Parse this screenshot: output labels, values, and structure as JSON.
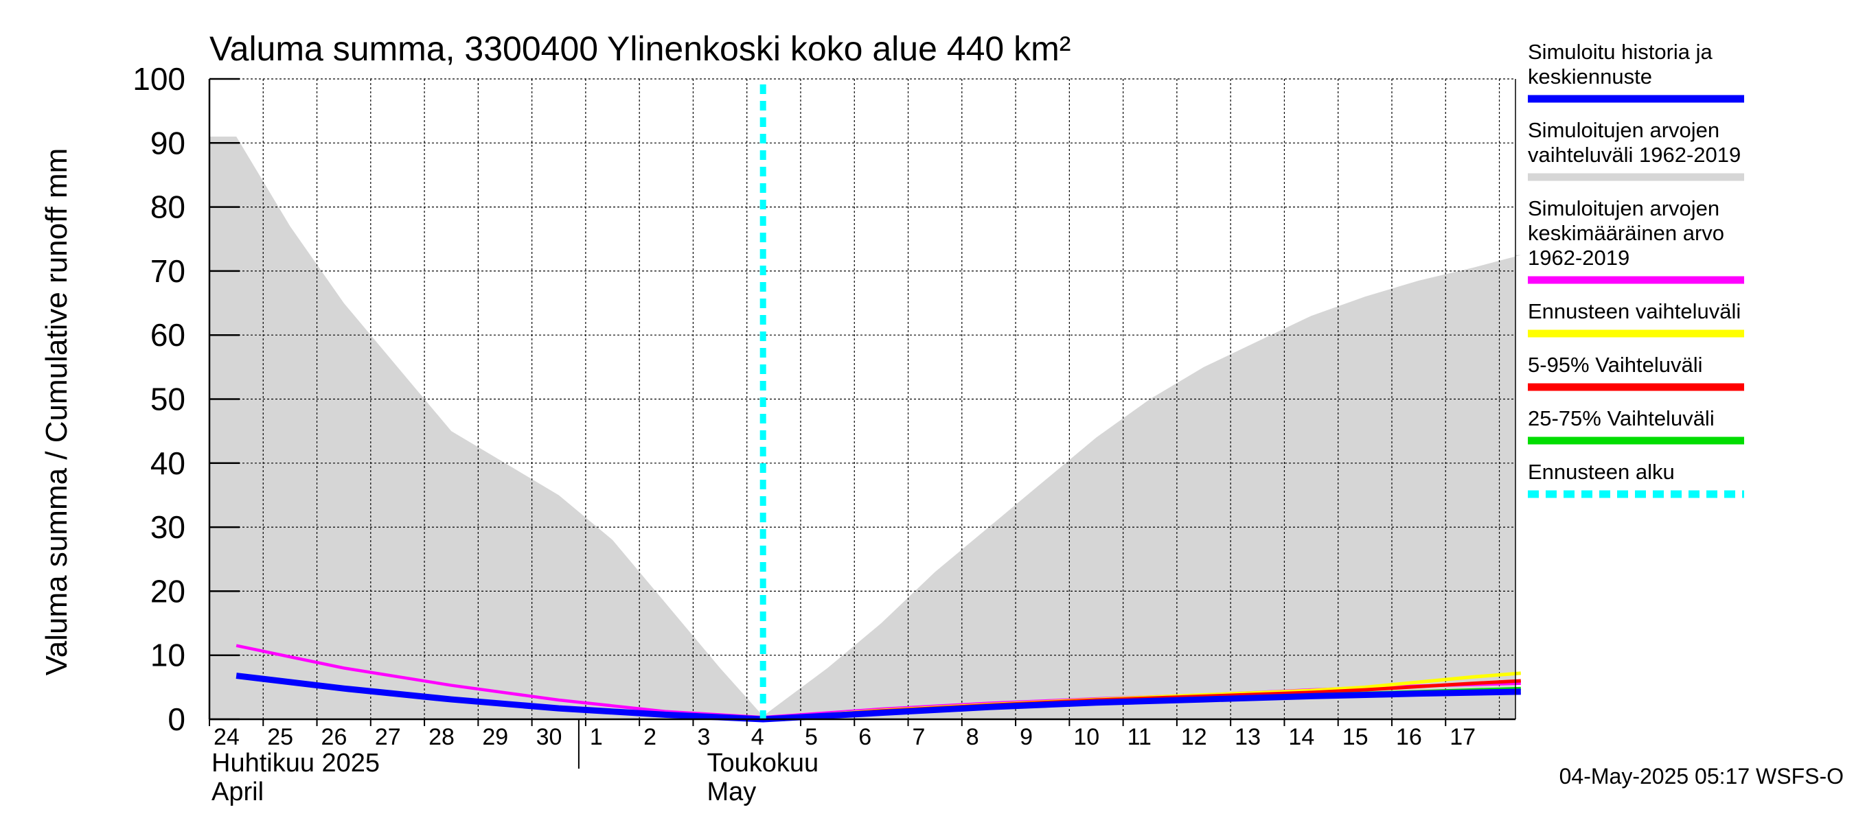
{
  "chart_data": {
    "type": "area",
    "title": "Valuma summa, 3300400 Ylinenkoski koko alue 440 km²",
    "ylabel": "Valuma summa / Cumulative runoff    mm",
    "ylim": [
      0,
      100
    ],
    "y_ticks": [
      "0",
      "10",
      "20",
      "30",
      "40",
      "50",
      "60",
      "70",
      "80",
      "90",
      "100"
    ],
    "x_days": [
      "24",
      "25",
      "26",
      "27",
      "28",
      "29",
      "30",
      "1",
      "2",
      "3",
      "4",
      "5",
      "6",
      "7",
      "8",
      "9",
      "10",
      "11",
      "12",
      "13",
      "14",
      "15",
      "16",
      "17"
    ],
    "months": [
      {
        "name": "Huhtikuu  2025",
        "english": "April"
      },
      {
        "name": "Toukokuu",
        "english": "May"
      }
    ],
    "forecast_start_day": 3.8,
    "series": [
      {
        "name": "Simuloitujen arvojen vaihteluväli 1962-2019",
        "color": "#d6d6d6",
        "kind": "band",
        "x": [
          0,
          1,
          2,
          3,
          4,
          5,
          6,
          7,
          8,
          9,
          9.8,
          11,
          12,
          13,
          14,
          15,
          16,
          17,
          18,
          19,
          20,
          21,
          22,
          23,
          23.9
        ],
        "upper": [
          91,
          77,
          65,
          55,
          45,
          40,
          35,
          28,
          18,
          8,
          0.5,
          8,
          15,
          23,
          30,
          37,
          44,
          50,
          55,
          59,
          63,
          66,
          68.5,
          70.5,
          72.5
        ],
        "lower": [
          0,
          0,
          0,
          0,
          0,
          0,
          0,
          0,
          0,
          0,
          0,
          0,
          0,
          0,
          0,
          0,
          0,
          0,
          0,
          0,
          0,
          0,
          0,
          0,
          0
        ]
      },
      {
        "name": "Simuloitujen arvojen keskimääräinen arvo 1962-2019",
        "color": "#ff00ff",
        "kind": "line",
        "x": [
          0,
          2,
          4,
          6,
          8,
          9.8,
          12,
          14,
          16,
          18,
          20,
          22,
          23.9
        ],
        "y": [
          11.5,
          8,
          5.3,
          3,
          1.2,
          0.3,
          1.6,
          2.5,
          3.2,
          3.8,
          4.6,
          5.2,
          5.6
        ]
      },
      {
        "name": "Ennusteen vaihteluväli",
        "color": "#ffff00",
        "kind": "line",
        "x": [
          9.8,
          12,
          14,
          16,
          18,
          20,
          21,
          22,
          23,
          23.9
        ],
        "y": [
          0,
          1.4,
          2.3,
          3.1,
          3.8,
          4.5,
          5,
          5.8,
          6.6,
          7.2
        ]
      },
      {
        "name": "5-95% Vaihteluväli",
        "color": "#ff0000",
        "kind": "line",
        "x": [
          9.8,
          12,
          14,
          16,
          18,
          20,
          21,
          22,
          23,
          23.9
        ],
        "y": [
          0,
          1.3,
          2.2,
          3,
          3.6,
          4.2,
          4.6,
          5.1,
          5.6,
          6
        ]
      },
      {
        "name": "25-75% Vaihteluväli",
        "color": "#00dd00",
        "kind": "line",
        "x": [
          9.8,
          12,
          14,
          16,
          18,
          20,
          22,
          23.9
        ],
        "y": [
          0,
          1.2,
          2.1,
          2.8,
          3.3,
          3.8,
          4.3,
          4.8
        ]
      },
      {
        "name": "Simuloitu historia ja keskiennuste",
        "color": "#0000ff",
        "kind": "line",
        "x": [
          0,
          2,
          4,
          6,
          8,
          9.8,
          12,
          14,
          16,
          18,
          20,
          22,
          23.9
        ],
        "y": [
          6.8,
          4.8,
          3.1,
          1.7,
          0.7,
          0.0,
          1.0,
          1.9,
          2.6,
          3.1,
          3.6,
          4.0,
          4.3
        ]
      }
    ],
    "grid": true,
    "legend_position": "right"
  },
  "legend": [
    {
      "lines": [
        "Simuloitu historia ja",
        "keskiennuste"
      ],
      "color": "#0000ff",
      "style": "solid"
    },
    {
      "lines": [
        "Simuloitujen arvojen",
        "vaihteluväli 1962-2019"
      ],
      "color": "#d6d6d6",
      "style": "solid"
    },
    {
      "lines": [
        "Simuloitujen arvojen",
        "keskimääräinen arvo",
        "   1962-2019"
      ],
      "color": "#ff00ff",
      "style": "solid"
    },
    {
      "lines": [
        "Ennusteen vaihteluväli"
      ],
      "color": "#ffff00",
      "style": "solid"
    },
    {
      "lines": [
        "5-95% Vaihteluväli"
      ],
      "color": "#ff0000",
      "style": "solid"
    },
    {
      "lines": [
        "25-75% Vaihteluväli"
      ],
      "color": "#00dd00",
      "style": "solid"
    },
    {
      "lines": [
        "Ennusteen alku"
      ],
      "color": "#00ffff",
      "style": "dashed"
    }
  ],
  "footer": "04-May-2025 05:17 WSFS-O"
}
